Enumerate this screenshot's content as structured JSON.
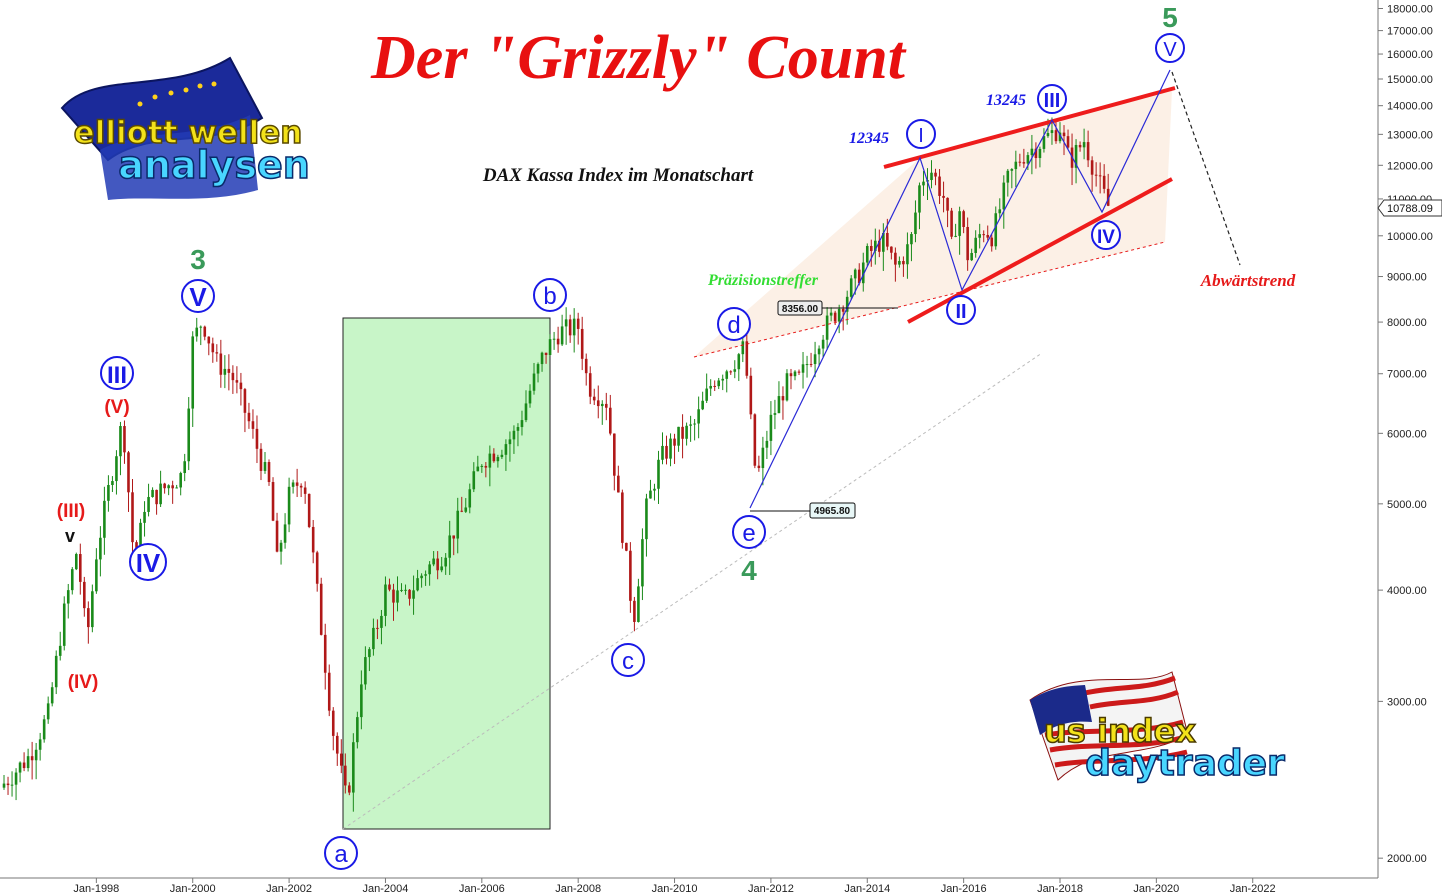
{
  "chart_data": {
    "type": "candlestick",
    "title": "Der \"Grizzly\" Count",
    "subtitle": "DAX Kassa Index im Monatschart",
    "y_scale": "log",
    "ylim": [
      1900,
      18400
    ],
    "y_ticks": [
      "2000.00",
      "3000.00",
      "4000.00",
      "5000.00",
      "6000.00",
      "7000.00",
      "8000.00",
      "9000.00",
      "10000.00",
      "11000.00",
      "12000.00",
      "13000.00",
      "14000.00",
      "15000.00",
      "16000.00",
      "17000.00",
      "18000.00"
    ],
    "y_tick_values": [
      2000,
      3000,
      4000,
      5000,
      6000,
      7000,
      8000,
      9000,
      10000,
      11000,
      12000,
      13000,
      14000,
      15000,
      16000,
      17000,
      18000
    ],
    "x_tick_labels": [
      "Jan-1998",
      "Jan-2000",
      "Jan-2002",
      "Jan-2004",
      "Jan-2006",
      "Jan-2008",
      "Jan-2010",
      "Jan-2012",
      "Jan-2014",
      "Jan-2016",
      "Jan-2018",
      "Jan-2020",
      "Jan-2022"
    ],
    "x_tick_years": [
      1998,
      2000,
      2002,
      2004,
      2006,
      2008,
      2010,
      2012,
      2014,
      2016,
      2018,
      2020,
      2022
    ],
    "x_range_years": [
      1996.0,
      2024.6
    ],
    "last_price": "10788.09",
    "price_path": [
      [
        1996.0,
        2400
      ],
      [
        1996.6,
        2600
      ],
      [
        1997.0,
        2900
      ],
      [
        1997.3,
        3700
      ],
      [
        1997.6,
        4450
      ],
      [
        1997.8,
        3500
      ],
      [
        1998.0,
        4400
      ],
      [
        1998.4,
        5700
      ],
      [
        1998.55,
        6200
      ],
      [
        1998.8,
        4200
      ],
      [
        1999.0,
        5000
      ],
      [
        1999.4,
        5200
      ],
      [
        1999.8,
        5400
      ],
      [
        2000.0,
        7600
      ],
      [
        2000.2,
        8050
      ],
      [
        2000.5,
        7200
      ],
      [
        2000.8,
        7000
      ],
      [
        2001.2,
        6100
      ],
      [
        2001.6,
        5200
      ],
      [
        2001.75,
        4300
      ],
      [
        2002.0,
        5100
      ],
      [
        2002.3,
        5400
      ],
      [
        2002.6,
        3900
      ],
      [
        2002.9,
        2800
      ],
      [
        2003.2,
        2300
      ],
      [
        2003.5,
        3200
      ],
      [
        2003.8,
        3600
      ],
      [
        2004.0,
        4000
      ],
      [
        2004.4,
        3900
      ],
      [
        2004.8,
        4200
      ],
      [
        2005.2,
        4400
      ],
      [
        2005.6,
        4900
      ],
      [
        2006.0,
        5600
      ],
      [
        2006.4,
        5800
      ],
      [
        2006.7,
        6000
      ],
      [
        2007.0,
        6700
      ],
      [
        2007.3,
        7400
      ],
      [
        2007.6,
        7800
      ],
      [
        2008.0,
        7900
      ],
      [
        2008.2,
        6800
      ],
      [
        2008.6,
        6500
      ],
      [
        2008.8,
        5200
      ],
      [
        2009.0,
        4300
      ],
      [
        2009.15,
        3700
      ],
      [
        2009.4,
        4900
      ],
      [
        2009.7,
        5600
      ],
      [
        2010.0,
        5900
      ],
      [
        2010.4,
        6100
      ],
      [
        2010.8,
        6900
      ],
      [
        2011.2,
        7200
      ],
      [
        2011.45,
        7500
      ],
      [
        2011.6,
        6000
      ],
      [
        2011.7,
        5300
      ],
      [
        2012.0,
        6200
      ],
      [
        2012.3,
        6800
      ],
      [
        2012.6,
        6900
      ],
      [
        2013.0,
        7700
      ],
      [
        2013.4,
        8300
      ],
      [
        2013.8,
        9000
      ],
      [
        2014.0,
        9500
      ],
      [
        2014.3,
        9900
      ],
      [
        2014.6,
        9200
      ],
      [
        2014.9,
        9800
      ],
      [
        2015.1,
        11500
      ],
      [
        2015.3,
        11950
      ],
      [
        2015.6,
        11000
      ],
      [
        2015.75,
        9700
      ],
      [
        2015.9,
        10800
      ],
      [
        2016.1,
        9400
      ],
      [
        2016.4,
        10200
      ],
      [
        2016.6,
        10000
      ],
      [
        2016.9,
        11500
      ],
      [
        2017.2,
        12300
      ],
      [
        2017.5,
        12600
      ],
      [
        2017.8,
        13000
      ],
      [
        2018.0,
        13250
      ],
      [
        2018.2,
        12100
      ],
      [
        2018.5,
        12800
      ],
      [
        2018.8,
        11500
      ],
      [
        2019.0,
        10800
      ]
    ],
    "annotations": {
      "wave_3_label": "3",
      "wave_4_label": "4",
      "wave_5_label": "5",
      "circle_V_left": "V",
      "circle_III_left": "III",
      "circle_IV_left": "IV",
      "paren_V": "(V)",
      "paren_III": "(III)",
      "paren_IV": "(IV)",
      "small_v": "v",
      "abc_a": "a",
      "abc_b": "b",
      "abc_c": "c",
      "abc_d": "d",
      "abc_e": "e",
      "wave_I": "I",
      "wave_II": "II",
      "wave_III": "III",
      "wave_IV": "IV",
      "wave_V": "V",
      "label_12345": "12345",
      "label_13245": "13245",
      "praezision": "Präzisionstreffer",
      "abwaerts": "Abwärtstrend",
      "box_8356": "8356.00",
      "box_4965": "4965.80"
    },
    "colors": {
      "up_candle": "#1a8a1a",
      "down_candle": "#b01818",
      "wave_blue": "#1a1ae6",
      "wave_red": "#e61a1a",
      "wave_green": "#3a9a5a",
      "title_red": "#e81010",
      "triangle_red": "#ee1c1c",
      "green_box": "#c8f5c8",
      "praezision_green": "#33dd33"
    }
  },
  "logos": {
    "logo_left_line1": "elliott wellen",
    "logo_left_line2": "analysen",
    "logo_right_line1": "us index",
    "logo_right_line2": "daytrader"
  }
}
